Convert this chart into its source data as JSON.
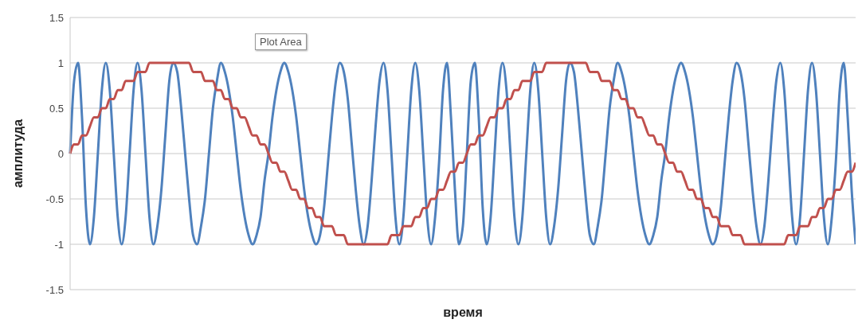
{
  "chart_data": {
    "type": "line",
    "xlabel": "время",
    "ylabel": "амплитуда",
    "annotations": [
      "Plot Area"
    ],
    "categories": [
      null,
      null,
      null,
      null,
      null,
      null,
      null,
      null,
      null,
      null,
      null,
      null,
      null,
      null,
      null,
      null,
      null,
      null,
      null,
      null,
      null,
      null,
      null,
      null,
      null,
      null,
      null,
      null,
      null,
      null,
      null,
      null,
      null,
      null,
      null,
      null,
      null,
      null,
      null,
      null,
      null,
      null,
      null,
      null,
      null,
      null,
      null,
      null,
      null,
      null,
      null,
      null,
      null,
      null,
      null,
      null,
      null,
      null,
      null,
      null,
      null,
      null,
      null,
      null,
      null,
      null,
      null,
      null,
      null,
      null,
      null,
      null,
      null,
      null,
      null,
      null,
      null,
      null,
      null,
      null,
      null,
      null,
      null,
      null,
      null,
      null,
      null,
      null,
      null,
      null,
      null,
      null,
      null,
      null,
      null,
      null,
      null,
      null,
      null,
      null,
      null,
      null,
      null,
      null,
      null,
      null,
      null,
      null,
      null,
      null,
      null,
      null,
      null,
      null,
      null,
      null,
      null,
      null,
      null,
      null,
      null,
      null,
      null,
      null,
      null,
      null,
      null,
      null,
      null,
      null,
      null,
      null,
      null,
      null,
      null,
      null,
      null,
      null,
      null,
      null,
      null,
      null,
      null,
      null,
      null,
      null,
      null,
      null,
      null,
      null,
      null,
      null,
      null,
      null,
      null,
      null,
      null,
      null,
      null,
      null,
      null,
      null,
      null,
      null,
      null,
      null,
      null,
      null,
      null,
      null,
      null,
      null,
      null,
      null,
      null,
      null,
      null,
      null,
      null,
      null,
      null,
      null,
      null,
      null,
      null,
      null,
      null,
      null,
      null,
      null,
      null,
      null,
      null,
      null,
      null,
      null,
      null,
      null,
      null
    ],
    "series": [
      {
        "color": "#4f81bd",
        "values": [
          0,
          0.8,
          1,
          0.4,
          -0.6,
          -1,
          -0.7,
          0,
          0.7,
          1,
          0.7,
          0,
          -0.7,
          -1,
          -0.7,
          0,
          0.7,
          1,
          0.7,
          0,
          -0.7,
          -1,
          -0.8,
          -0.4,
          0.2,
          0.8,
          1,
          0.9,
          0.5,
          0,
          -0.5,
          -0.9,
          -1,
          -0.8,
          -0.5,
          0,
          0.5,
          0.8,
          1,
          0.9,
          0.7,
          0.4,
          0,
          -0.4,
          -0.7,
          -0.9,
          -1,
          -0.9,
          -0.7,
          -0.3,
          0,
          0.4,
          0.7,
          0.9,
          1,
          0.9,
          0.7,
          0.4,
          0,
          -0.4,
          -0.7,
          -0.9,
          -1,
          -0.9,
          -0.6,
          -0.1,
          0.4,
          0.8,
          1,
          0.9,
          0.6,
          0.1,
          -0.4,
          -0.8,
          -1,
          -0.8,
          -0.3,
          0.3,
          0.8,
          1,
          0.7,
          0,
          -0.7,
          -1,
          -0.7,
          0,
          0.7,
          1,
          0.7,
          0,
          -0.7,
          -1,
          -0.7,
          -0.1,
          0.7,
          1,
          0.4,
          -0.4,
          -1,
          -0.8,
          0,
          0.8,
          1,
          0.4,
          -0.6,
          -1,
          -0.7,
          0,
          0.7,
          1,
          0.7,
          0,
          -0.7,
          -1,
          -0.7,
          0,
          0.7,
          1,
          0.7,
          0,
          -0.7,
          -1,
          -0.8,
          -0.4,
          0.2,
          0.8,
          1,
          0.9,
          0.5,
          0,
          -0.5,
          -0.9,
          -1,
          -0.8,
          -0.5,
          0,
          0.5,
          0.8,
          1,
          0.9,
          0.7,
          0.4,
          0,
          -0.4,
          -0.7,
          -0.9,
          -1,
          -0.9,
          -0.7,
          -0.3,
          0,
          0.4,
          0.7,
          0.9,
          1,
          0.9,
          0.7,
          0.4,
          0,
          -0.4,
          -0.7,
          -0.9,
          -1,
          -0.9,
          -0.6,
          -0.1,
          0.4,
          0.8,
          1,
          0.9,
          0.6,
          0.1,
          -0.4,
          -0.8,
          -1,
          -0.8,
          -0.3,
          0.3,
          0.8,
          1,
          0.7,
          0,
          -0.7,
          -1,
          -0.7,
          0,
          0.7,
          1,
          0.7,
          0,
          -0.7,
          -1,
          -0.7,
          -0.1,
          0.7,
          1,
          0.4,
          -0.4,
          -1
        ]
      },
      {
        "color": "#c0504d",
        "values": [
          0,
          0.1,
          0.1,
          0.2,
          0.2,
          0.3,
          0.4,
          0.4,
          0.5,
          0.5,
          0.6,
          0.6,
          0.7,
          0.7,
          0.8,
          0.8,
          0.8,
          0.9,
          0.9,
          0.9,
          1,
          1,
          1,
          1,
          1,
          1,
          1,
          1,
          1,
          1,
          1,
          0.9,
          0.9,
          0.9,
          0.8,
          0.8,
          0.8,
          0.7,
          0.7,
          0.6,
          0.6,
          0.5,
          0.5,
          0.4,
          0.4,
          0.3,
          0.2,
          0.2,
          0.1,
          0.1,
          0,
          -0.1,
          -0.1,
          -0.2,
          -0.2,
          -0.3,
          -0.4,
          -0.4,
          -0.5,
          -0.5,
          -0.6,
          -0.6,
          -0.7,
          -0.7,
          -0.8,
          -0.8,
          -0.8,
          -0.9,
          -0.9,
          -0.9,
          -1,
          -1,
          -1,
          -1,
          -1,
          -1,
          -1,
          -1,
          -1,
          -1,
          -1,
          -0.9,
          -0.9,
          -0.9,
          -0.8,
          -0.8,
          -0.8,
          -0.7,
          -0.7,
          -0.6,
          -0.6,
          -0.5,
          -0.5,
          -0.4,
          -0.4,
          -0.3,
          -0.2,
          -0.2,
          -0.1,
          -0.1,
          0,
          0.1,
          0.1,
          0.2,
          0.2,
          0.3,
          0.4,
          0.4,
          0.5,
          0.5,
          0.6,
          0.6,
          0.7,
          0.7,
          0.8,
          0.8,
          0.8,
          0.9,
          0.9,
          0.9,
          1,
          1,
          1,
          1,
          1,
          1,
          1,
          1,
          1,
          1,
          1,
          0.9,
          0.9,
          0.9,
          0.8,
          0.8,
          0.8,
          0.7,
          0.7,
          0.6,
          0.6,
          0.5,
          0.5,
          0.4,
          0.4,
          0.3,
          0.2,
          0.2,
          0.1,
          0.1,
          0,
          -0.1,
          -0.1,
          -0.2,
          -0.2,
          -0.3,
          -0.4,
          -0.4,
          -0.5,
          -0.5,
          -0.6,
          -0.6,
          -0.7,
          -0.7,
          -0.8,
          -0.8,
          -0.8,
          -0.9,
          -0.9,
          -0.9,
          -1,
          -1,
          -1,
          -1,
          -1,
          -1,
          -1,
          -1,
          -1,
          -1,
          -1,
          -0.9,
          -0.9,
          -0.9,
          -0.8,
          -0.8,
          -0.8,
          -0.7,
          -0.7,
          -0.6,
          -0.6,
          -0.5,
          -0.5,
          -0.4,
          -0.4,
          -0.3,
          -0.2,
          -0.2,
          -0.1
        ]
      }
    ],
    "ylim": [
      -1.5,
      1.5
    ],
    "yticks": [
      -1.5,
      -1,
      -0.5,
      0,
      0.5,
      1,
      1.5
    ],
    "grid": "y",
    "marker": "none"
  }
}
